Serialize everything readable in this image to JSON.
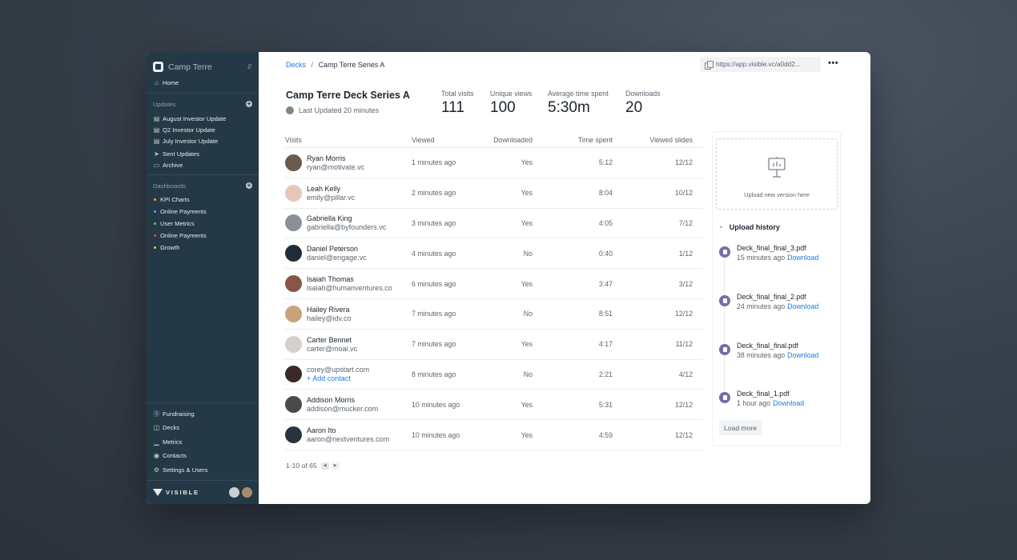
{
  "workspace": {
    "name": "Camp Terre"
  },
  "sidebar": {
    "home": "Home",
    "updates_header": "Updates",
    "updates": [
      {
        "label": "August Investor Update",
        "icon": "doc-icon"
      },
      {
        "label": "Q2 Investor Update",
        "icon": "doc-icon"
      },
      {
        "label": "July Investor Update",
        "icon": "doc-icon"
      },
      {
        "label": "Sent Updates",
        "icon": "send-icon"
      },
      {
        "label": "Archive",
        "icon": "archive-icon"
      }
    ],
    "dashboards_header": "Dashboards",
    "dashboards": [
      {
        "label": "KPI Charts",
        "color": "#f2a33a"
      },
      {
        "label": "Online Payments",
        "color": "#2bb3e6"
      },
      {
        "label": "User Metrics",
        "color": "#5cc26b"
      },
      {
        "label": "Online Payments",
        "color": "#e24a4a"
      },
      {
        "label": "Growth",
        "color": "#f2c33a"
      }
    ],
    "bottom": [
      {
        "label": "Fundraising",
        "icon": "dollar-icon"
      },
      {
        "label": "Decks",
        "icon": "presentation-icon"
      },
      {
        "label": "Metrics",
        "icon": "chart-icon"
      },
      {
        "label": "Contacts",
        "icon": "contacts-icon"
      },
      {
        "label": "Settings & Users",
        "icon": "gear-icon"
      }
    ],
    "brand": "VISIBLE"
  },
  "header": {
    "breadcrumb_link": "Decks",
    "breadcrumb_sep": "/",
    "breadcrumb_current": "Camp Terre Series A",
    "share_url": "https://app.visible.vc/a0dd2...",
    "more": "•••"
  },
  "deck": {
    "title": "Camp Terre Deck Series A",
    "updated": "Last Updated 20 minutes"
  },
  "stats": [
    {
      "label": "Total visits",
      "value": "111"
    },
    {
      "label": "Unique views",
      "value": "100"
    },
    {
      "label": "Average time spent",
      "value": "5:30m"
    },
    {
      "label": "Downloads",
      "value": "20"
    }
  ],
  "table": {
    "columns": [
      "Visits",
      "Viewed",
      "Downloaded",
      "Time spent",
      "Viewed slides"
    ],
    "rows": [
      {
        "name": "Ryan Morris",
        "email": "ryan@motivate.vc",
        "viewed": "1 minutes ago",
        "downloaded": "Yes",
        "time": "5:12",
        "slides": "12/12",
        "avatar_color": "#6b5a4e"
      },
      {
        "name": "Leah Kelly",
        "email": "emily@pillar.vc",
        "viewed": "2 minutes ago",
        "downloaded": "Yes",
        "time": "8:04",
        "slides": "10/12",
        "avatar_color": "#e6c7b5"
      },
      {
        "name": "Gabriella King",
        "email": "gabriella@byfounders.vc",
        "viewed": "3 minutes ago",
        "downloaded": "Yes",
        "time": "4:05",
        "slides": "7/12",
        "avatar_color": "#8b8f96"
      },
      {
        "name": "Daniel Peterson",
        "email": "daniel@engage.vc",
        "viewed": "4 minutes ago",
        "downloaded": "No",
        "time": "0:40",
        "slides": "1/12",
        "avatar_color": "#1f2d3a"
      },
      {
        "name": "Isaiah Thomas",
        "email": "isaiah@humanventures.co",
        "viewed": "6 minutes ago",
        "downloaded": "Yes",
        "time": "3:47",
        "slides": "3/12",
        "avatar_color": "#8a5548"
      },
      {
        "name": "Hailey Rivera",
        "email": "hailey@idv.co",
        "viewed": "7 minutes ago",
        "downloaded": "No",
        "time": "8:51",
        "slides": "12/12",
        "avatar_color": "#c9a27a"
      },
      {
        "name": "Carter Bennet",
        "email": "carter@moai.vc",
        "viewed": "7 minutes ago",
        "downloaded": "Yes",
        "time": "4:17",
        "slides": "11/12",
        "avatar_color": "#d4d0cc"
      },
      {
        "name": "",
        "email": "corey@upstart.com",
        "add_contact": "+ Add contact",
        "viewed": "8 minutes ago",
        "downloaded": "No",
        "time": "2:21",
        "slides": "4/12",
        "avatar_color": "#3a2a26"
      },
      {
        "name": "Addison Morris",
        "email": "addison@mucker.com",
        "viewed": "10 minutes ago",
        "downloaded": "Yes",
        "time": "5:31",
        "slides": "12/12",
        "avatar_color": "#4a4a4a"
      },
      {
        "name": "Aaron Ito",
        "email": "aaron@nextventures.com",
        "viewed": "10 minutes ago",
        "downloaded": "Yes",
        "time": "4:59",
        "slides": "12/12",
        "avatar_color": "#2a3440"
      }
    ],
    "pagination": "1-10 of 65"
  },
  "panel": {
    "upload_prompt": "Upload new version here",
    "history_title": "Upload history",
    "history": [
      {
        "file": "Deck_final_final_3.pdf",
        "when": "15 minutes ago",
        "action": "Download"
      },
      {
        "file": "Deck_final_final_2.pdf",
        "when": "24 minutes ago",
        "action": "Download"
      },
      {
        "file": "Deck_final_final.pdf",
        "when": "38 minutes ago",
        "action": "Download"
      },
      {
        "file": "Deck_final_1.pdf",
        "when": "1 hour ago",
        "action": "Download"
      }
    ],
    "load_more": "Load more"
  },
  "colors": {
    "sidebar_bg": "#243845",
    "link": "#1f7ae0",
    "file_icon": "#7a6aa8"
  }
}
